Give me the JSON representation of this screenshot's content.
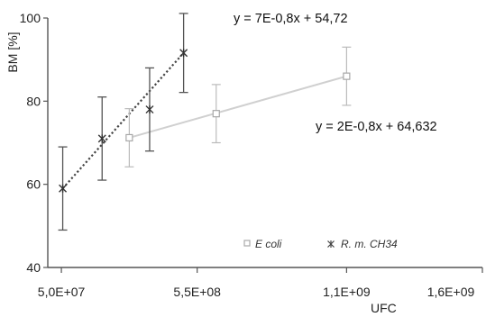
{
  "chart_data": {
    "type": "scatter",
    "xlabel": "UFC",
    "ylabel": "BM [%]",
    "xlim": [
      0,
      1600000000
    ],
    "ylim": [
      40,
      100
    ],
    "x_ticks": [
      {
        "value": 50000000,
        "label": "5,0E+07"
      },
      {
        "value": 550000000,
        "label": "5,5E+08"
      },
      {
        "value": 1100000000,
        "label": "1,1E+09"
      },
      {
        "value": 1600000000,
        "label": "1,6E+09"
      }
    ],
    "y_ticks": [
      {
        "value": 40,
        "label": "40"
      },
      {
        "value": 60,
        "label": "60"
      },
      {
        "value": 80,
        "label": "80"
      },
      {
        "value": 100,
        "label": "100"
      }
    ],
    "legend_position": "bottom-right",
    "series": [
      {
        "name": "E coli",
        "marker": "open-square",
        "color": "#bbbbbb",
        "points": [
          {
            "x": 300000000,
            "y": 71.2,
            "err": 7
          },
          {
            "x": 620000000,
            "y": 77.0,
            "err": 7
          },
          {
            "x": 1100000000,
            "y": 86.0,
            "err": 7
          }
        ],
        "trendline": {
          "style": "solid",
          "from": [
            300000000,
            71.2
          ],
          "to": [
            1100000000,
            86.0
          ],
          "equation": "y = 2E-0,8x + 64,632"
        }
      },
      {
        "name": "R. m. CH34",
        "marker": "star",
        "color": "#555555",
        "points": [
          {
            "x": 55000000,
            "y": 59.0,
            "err": 10
          },
          {
            "x": 200000000,
            "y": 71.0,
            "err": 10
          },
          {
            "x": 375000000,
            "y": 78.0,
            "err": 10
          },
          {
            "x": 500000000,
            "y": 91.6,
            "err": 9.5
          }
        ],
        "trendline": {
          "style": "dotted",
          "from": [
            55000000,
            59.0
          ],
          "to": [
            500000000,
            91.6
          ],
          "equation": "y = 7E-0,8x + 54,72"
        }
      }
    ]
  }
}
